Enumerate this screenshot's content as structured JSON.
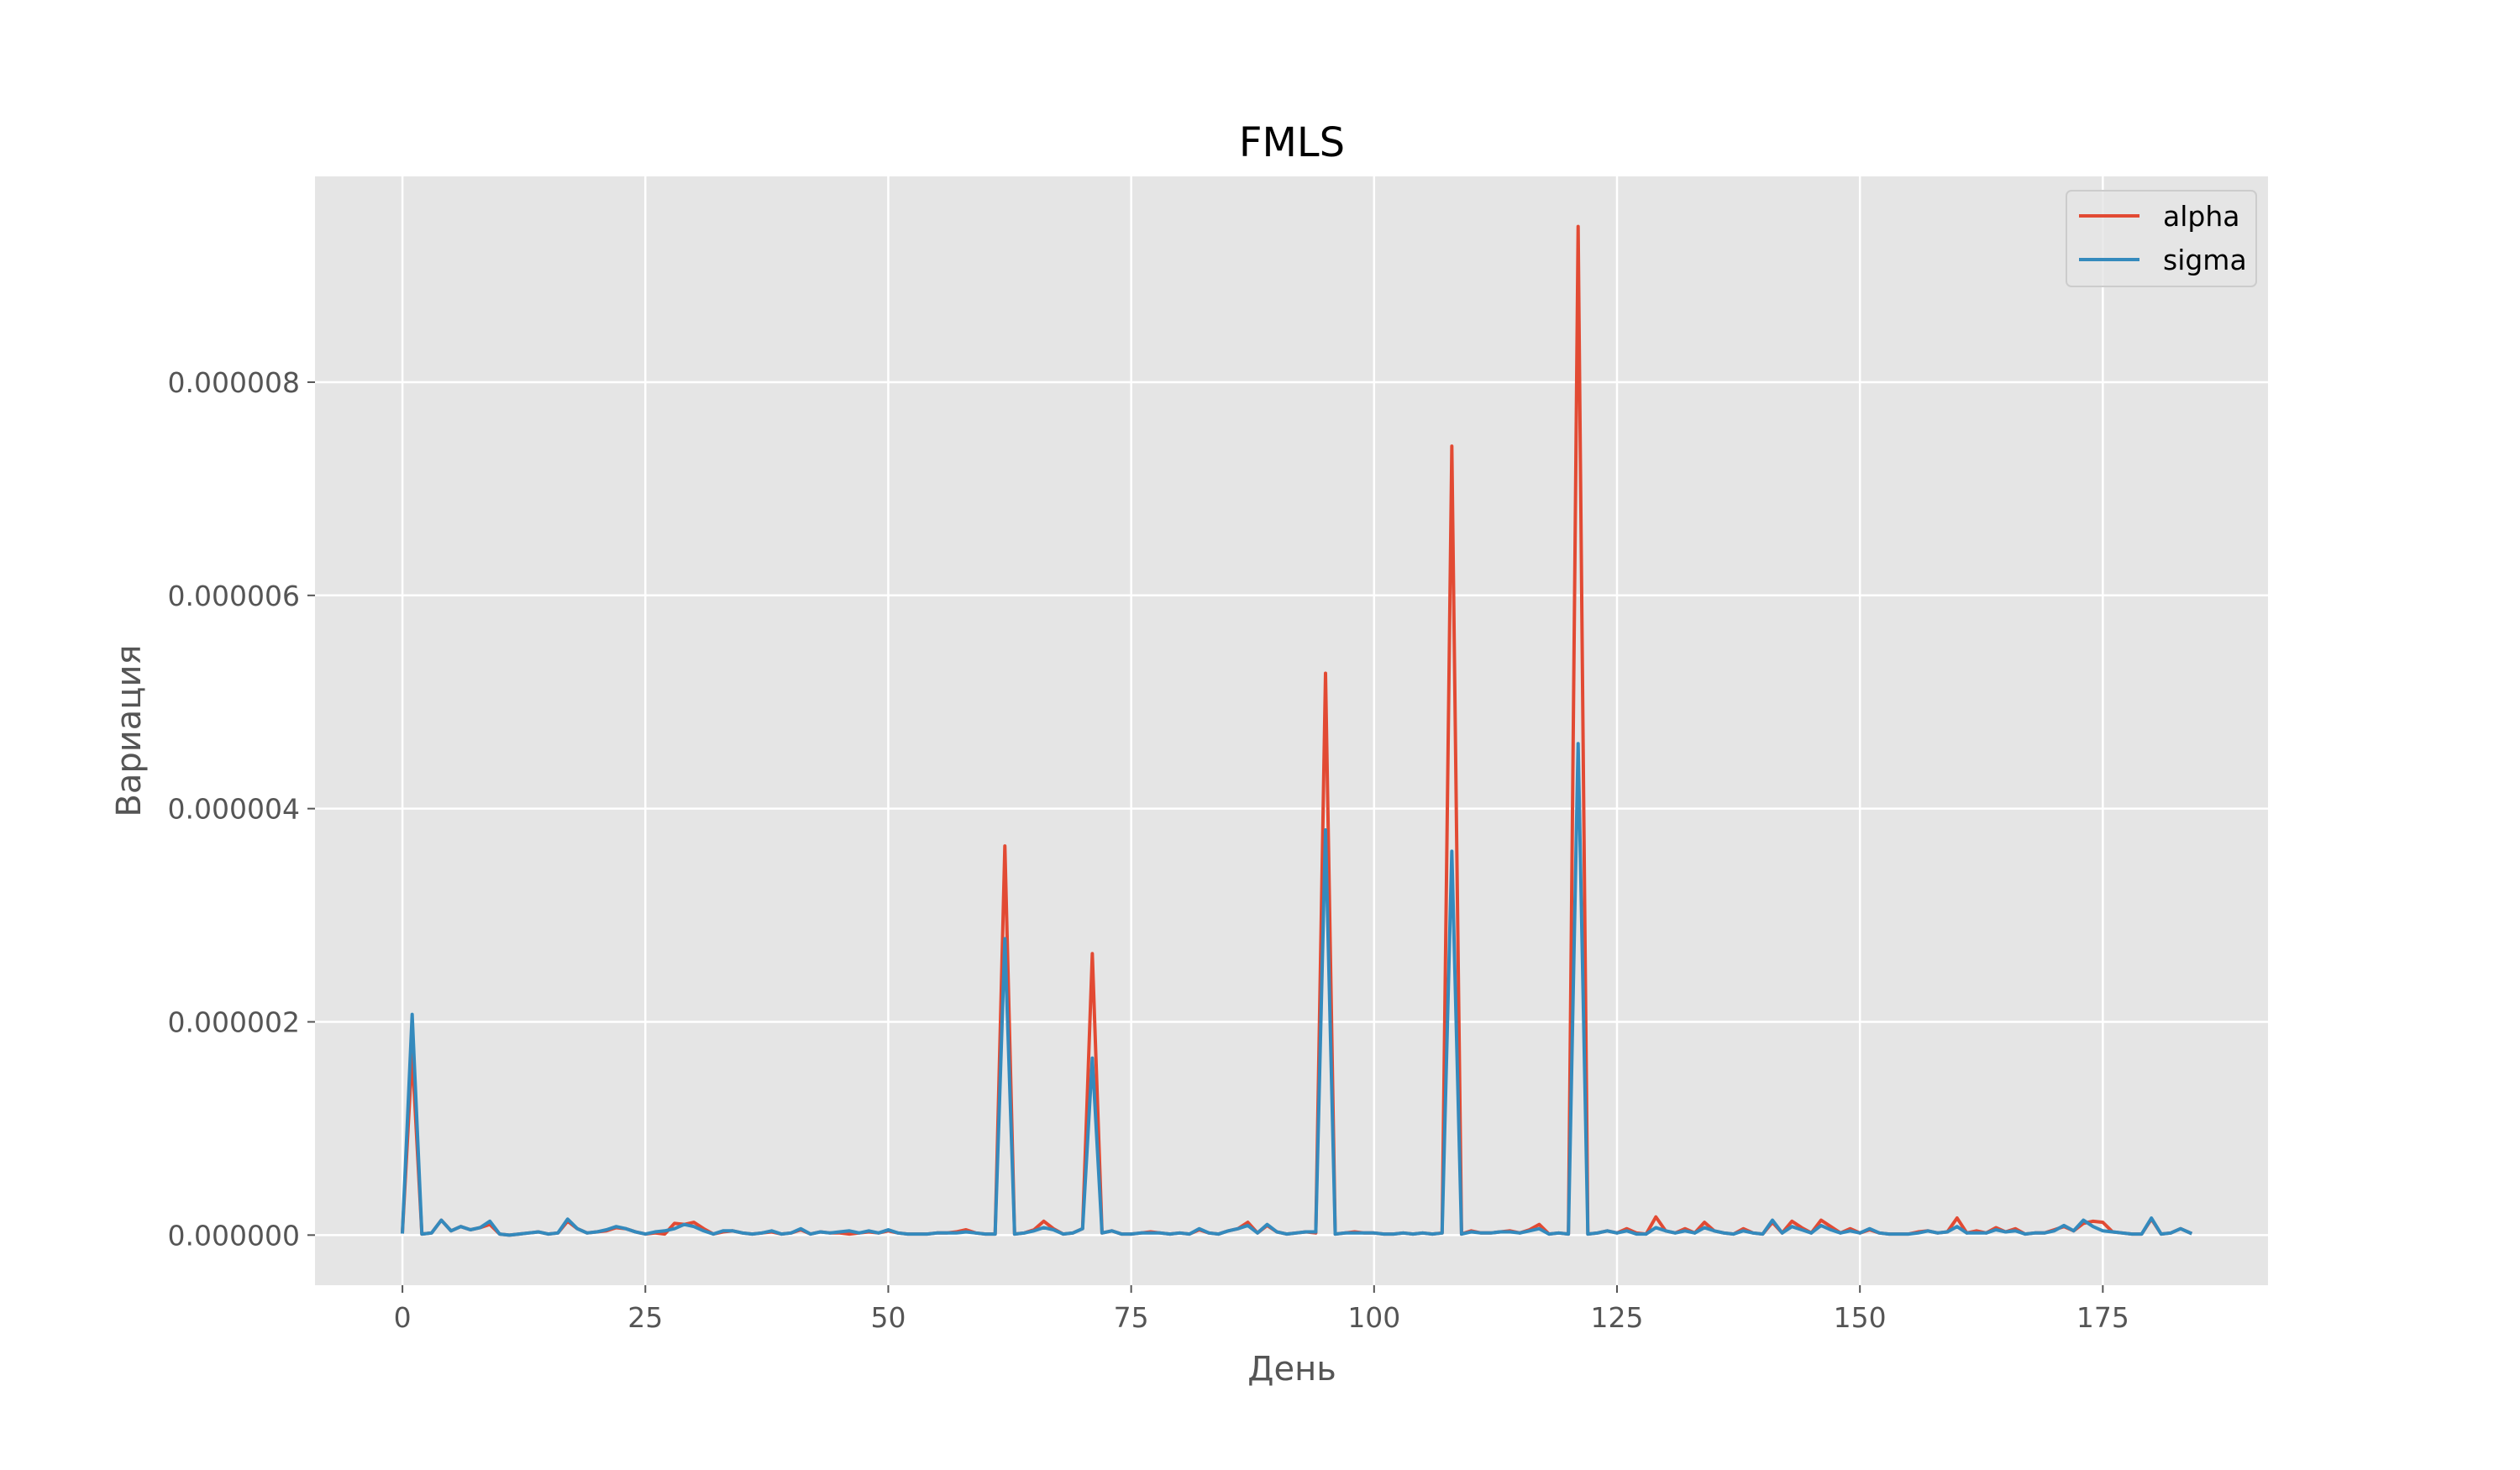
{
  "chart_data": {
    "type": "line",
    "title": "FMLS",
    "xlabel": "День",
    "ylabel": "Вариация",
    "xlim": [
      -9,
      192
    ],
    "ylim": [
      -4.7e-07,
      9.93e-06
    ],
    "xticks": [
      0,
      25,
      50,
      75,
      100,
      125,
      150,
      175
    ],
    "xtick_labels": [
      "0",
      "25",
      "50",
      "75",
      "100",
      "125",
      "150",
      "175"
    ],
    "yticks": [
      0,
      2e-06,
      4e-06,
      6e-06,
      8e-06
    ],
    "ytick_labels": [
      "0.000000",
      "0.000002",
      "0.000004",
      "0.000006",
      "0.000008"
    ],
    "grid": true,
    "legend": "top-right",
    "style": "ggplot",
    "x": [
      0,
      1,
      2,
      3,
      4,
      5,
      6,
      7,
      8,
      9,
      10,
      11,
      12,
      13,
      14,
      15,
      16,
      17,
      18,
      19,
      20,
      21,
      22,
      23,
      24,
      25,
      26,
      27,
      28,
      29,
      30,
      31,
      32,
      33,
      34,
      35,
      36,
      37,
      38,
      39,
      40,
      41,
      42,
      43,
      44,
      45,
      46,
      47,
      48,
      49,
      50,
      51,
      52,
      53,
      54,
      55,
      56,
      57,
      58,
      59,
      60,
      61,
      62,
      63,
      64,
      65,
      66,
      67,
      68,
      69,
      70,
      71,
      72,
      73,
      74,
      75,
      76,
      77,
      78,
      79,
      80,
      81,
      82,
      83,
      84,
      85,
      86,
      87,
      88,
      89,
      90,
      91,
      92,
      93,
      94,
      95,
      96,
      97,
      98,
      99,
      100,
      101,
      102,
      103,
      104,
      105,
      106,
      107,
      108,
      109,
      110,
      111,
      112,
      113,
      114,
      115,
      116,
      117,
      118,
      119,
      120,
      121,
      122,
      123,
      124,
      125,
      126,
      127,
      128,
      129,
      130,
      131,
      132,
      133,
      134,
      135,
      136,
      137,
      138,
      139,
      140,
      141,
      142,
      143,
      144,
      145,
      146,
      147,
      148,
      149,
      150,
      151,
      152,
      153,
      154,
      155,
      156,
      157,
      158,
      159,
      160,
      161,
      162,
      163,
      164,
      165,
      166,
      167,
      168,
      169,
      170,
      171,
      172,
      173,
      174,
      175,
      176,
      177,
      178,
      179,
      180,
      181,
      182,
      183,
      184
    ],
    "series": [
      {
        "name": "alpha",
        "color": "#E24A33",
        "values": [
          3e-08,
          1.7e-06,
          1e-08,
          2e-08,
          1.4e-07,
          4e-08,
          8e-08,
          5e-08,
          7e-08,
          1e-07,
          1e-08,
          0,
          1e-08,
          2e-08,
          3e-08,
          1e-08,
          2e-08,
          1.3e-07,
          6e-08,
          2e-08,
          3e-08,
          4e-08,
          7e-08,
          6e-08,
          3e-08,
          1e-08,
          2e-08,
          1e-08,
          1.1e-07,
          1e-07,
          1.2e-07,
          6e-08,
          1e-08,
          3e-08,
          4e-08,
          2e-08,
          1e-08,
          2e-08,
          3e-08,
          1e-08,
          2e-08,
          5e-08,
          1e-08,
          3e-08,
          2e-08,
          2e-08,
          1e-08,
          2e-08,
          3e-08,
          2e-08,
          4e-08,
          2e-08,
          1e-08,
          1e-08,
          1e-08,
          2e-08,
          2e-08,
          3e-08,
          5e-08,
          2e-08,
          1e-08,
          1e-08,
          3.65e-06,
          1e-08,
          2e-08,
          5e-08,
          1.3e-07,
          6e-08,
          1e-08,
          2e-08,
          6e-08,
          2.64e-06,
          2e-08,
          4e-08,
          1e-08,
          1e-08,
          2e-08,
          3e-08,
          2e-08,
          1e-08,
          2e-08,
          1e-08,
          5e-08,
          2e-08,
          1e-08,
          4e-08,
          6e-08,
          1.2e-07,
          2e-08,
          9e-08,
          3e-08,
          1e-08,
          2e-08,
          3e-08,
          2e-08,
          5.27e-06,
          1e-08,
          2e-08,
          3e-08,
          2e-08,
          2e-08,
          1e-08,
          1e-08,
          2e-08,
          1e-08,
          2e-08,
          1e-08,
          2e-08,
          7.4e-06,
          1e-08,
          4e-08,
          2e-08,
          2e-08,
          3e-08,
          4e-08,
          2e-08,
          5e-08,
          1e-07,
          1e-08,
          2e-08,
          1e-08,
          9.46e-06,
          1e-08,
          2e-08,
          4e-08,
          2e-08,
          6e-08,
          2e-08,
          1e-08,
          1.7e-07,
          4e-08,
          2e-08,
          6e-08,
          2e-08,
          1.2e-07,
          4e-08,
          2e-08,
          1e-08,
          6e-08,
          2e-08,
          1e-08,
          1.2e-07,
          2e-08,
          1.3e-07,
          7e-08,
          2e-08,
          1.4e-07,
          8e-08,
          2e-08,
          6e-08,
          2e-08,
          5e-08,
          2e-08,
          1e-08,
          1e-08,
          1e-08,
          3e-08,
          4e-08,
          2e-08,
          3e-08,
          1.6e-07,
          2e-08,
          4e-08,
          2e-08,
          7e-08,
          3e-08,
          6e-08,
          1e-08,
          2e-08,
          2e-08,
          5e-08,
          8e-08,
          4e-08,
          1.1e-07,
          1.3e-07,
          1.2e-07,
          3e-08,
          2e-08,
          1e-08,
          1e-08,
          1.5e-07,
          1e-08,
          2e-08,
          6e-08,
          2e-08
        ]
      },
      {
        "name": "sigma",
        "color": "#348ABD",
        "values": [
          3e-08,
          2.07e-06,
          1e-08,
          2e-08,
          1.4e-07,
          4e-08,
          8e-08,
          5e-08,
          7e-08,
          1.3e-07,
          1e-08,
          0,
          1e-08,
          2e-08,
          3e-08,
          1e-08,
          2e-08,
          1.5e-07,
          6e-08,
          2e-08,
          3e-08,
          5e-08,
          8e-08,
          6e-08,
          3e-08,
          1e-08,
          3e-08,
          4e-08,
          6e-08,
          1e-07,
          8e-08,
          4e-08,
          1e-08,
          4e-08,
          4e-08,
          2e-08,
          1e-08,
          2e-08,
          4e-08,
          1e-08,
          2e-08,
          6e-08,
          1e-08,
          3e-08,
          2e-08,
          3e-08,
          4e-08,
          2e-08,
          4e-08,
          2e-08,
          5e-08,
          2e-08,
          1e-08,
          1e-08,
          1e-08,
          2e-08,
          2e-08,
          2e-08,
          3e-08,
          2e-08,
          1e-08,
          1e-08,
          2.78e-06,
          1e-08,
          2e-08,
          4e-08,
          7e-08,
          5e-08,
          1e-08,
          2e-08,
          6e-08,
          1.66e-06,
          2e-08,
          4e-08,
          1e-08,
          1e-08,
          2e-08,
          2e-08,
          2e-08,
          1e-08,
          2e-08,
          1e-08,
          6e-08,
          2e-08,
          1e-08,
          4e-08,
          6e-08,
          9e-08,
          2e-08,
          1e-07,
          3e-08,
          1e-08,
          2e-08,
          3e-08,
          3e-08,
          3.8e-06,
          1e-08,
          2e-08,
          2e-08,
          2e-08,
          2e-08,
          1e-08,
          1e-08,
          2e-08,
          1e-08,
          2e-08,
          1e-08,
          2e-08,
          3.6e-06,
          1e-08,
          3e-08,
          2e-08,
          2e-08,
          3e-08,
          3e-08,
          2e-08,
          4e-08,
          6e-08,
          1e-08,
          2e-08,
          1e-08,
          4.61e-06,
          1e-08,
          2e-08,
          4e-08,
          2e-08,
          4e-08,
          1e-08,
          1e-08,
          7e-08,
          4e-08,
          2e-08,
          4e-08,
          2e-08,
          7e-08,
          4e-08,
          2e-08,
          1e-08,
          4e-08,
          2e-08,
          1e-08,
          1.4e-07,
          2e-08,
          8e-08,
          5e-08,
          2e-08,
          9e-08,
          5e-08,
          2e-08,
          4e-08,
          2e-08,
          6e-08,
          2e-08,
          1e-08,
          1e-08,
          1e-08,
          2e-08,
          4e-08,
          2e-08,
          3e-08,
          8e-08,
          2e-08,
          2e-08,
          2e-08,
          5e-08,
          3e-08,
          4e-08,
          1e-08,
          2e-08,
          2e-08,
          4e-08,
          9e-08,
          4e-08,
          1.4e-07,
          8e-08,
          4e-08,
          3e-08,
          2e-08,
          1e-08,
          1e-08,
          1.6e-07,
          1e-08,
          2e-08,
          6e-08,
          2e-08
        ]
      }
    ]
  }
}
